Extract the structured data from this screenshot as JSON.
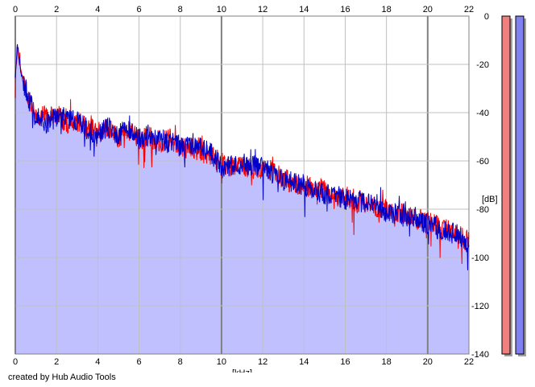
{
  "credit": "created by Hub Audio Tools",
  "colors": {
    "background": "#ffffff",
    "plot_fill": "#c0c0ff",
    "grid": "#c0c0c0",
    "grid_major": "#808080",
    "series_red": "#ff0000",
    "series_blue": "#0000c8",
    "meter_left": "#f08080",
    "meter_right": "#8080f0"
  },
  "chart_data": {
    "type": "area",
    "title": "",
    "xlabel": "[kHz]",
    "ylabel": "[dB]",
    "xlim": [
      0,
      22
    ],
    "ylim": [
      -140,
      0
    ],
    "x_ticks": [
      "0",
      "2",
      "4",
      "6",
      "8",
      "10",
      "12",
      "14",
      "16",
      "18",
      "20",
      "22"
    ],
    "y_ticks": [
      "0",
      "-20",
      "-40",
      "-60",
      "-80",
      "-100",
      "-120",
      "-140"
    ],
    "grid": true,
    "x_axis_labels_top_and_bottom": true,
    "series": [
      {
        "color": "#ff0000",
        "x": [
          0,
          0.1,
          0.2,
          0.3,
          0.5,
          0.75,
          1,
          1.5,
          2,
          2.5,
          3,
          3.5,
          4,
          4.5,
          5,
          5.5,
          6,
          6.5,
          7,
          7.5,
          8,
          8.5,
          9,
          9.5,
          10,
          10.5,
          11,
          11.5,
          12,
          12.5,
          13,
          13.5,
          14,
          14.5,
          15,
          15.5,
          16,
          16.5,
          17,
          17.5,
          18,
          18.5,
          19,
          19.5,
          20,
          20.5,
          21,
          21.5,
          22
        ],
        "values": [
          -26,
          -13,
          -19,
          -24,
          -30,
          -36,
          -40,
          -42,
          -41,
          -44,
          -44,
          -46,
          -48,
          -47,
          -50,
          -47,
          -51,
          -50,
          -52,
          -51,
          -54,
          -55,
          -56,
          -58,
          -61,
          -63,
          -62,
          -63,
          -64,
          -64,
          -67,
          -70,
          -70,
          -71,
          -72,
          -76,
          -74,
          -77,
          -77,
          -79,
          -79,
          -81,
          -82,
          -84,
          -85,
          -87,
          -89,
          -90,
          -94
        ]
      },
      {
        "color": "#0000c8",
        "x": [
          0,
          0.1,
          0.2,
          0.3,
          0.5,
          0.75,
          1,
          1.5,
          2,
          2.5,
          3,
          3.5,
          4,
          4.5,
          5,
          5.5,
          6,
          6.5,
          7,
          7.5,
          8,
          8.5,
          9,
          9.5,
          10,
          10.5,
          11,
          11.5,
          12,
          12.5,
          13,
          13.5,
          14,
          14.5,
          15,
          15.5,
          16,
          16.5,
          17,
          17.5,
          18,
          18.5,
          19,
          19.5,
          20,
          20.5,
          21,
          21.5,
          22
        ],
        "values": [
          -25,
          -12,
          -18,
          -25,
          -30,
          -37,
          -42,
          -44,
          -42,
          -42,
          -43,
          -47,
          -49,
          -46,
          -49,
          -46,
          -51,
          -49,
          -51,
          -52,
          -54,
          -54,
          -55,
          -57,
          -63,
          -62,
          -61,
          -62,
          -63,
          -65,
          -68,
          -69,
          -70,
          -72,
          -74,
          -74,
          -76,
          -76,
          -78,
          -78,
          -81,
          -82,
          -82,
          -85,
          -86,
          -88,
          -89,
          -91,
          -94
        ]
      }
    ],
    "level_meters": {
      "ylim": [
        -140,
        0
      ],
      "left_level_db": 0,
      "right_level_db": 0,
      "left_color": "#f08080",
      "right_color": "#8080f0"
    }
  }
}
